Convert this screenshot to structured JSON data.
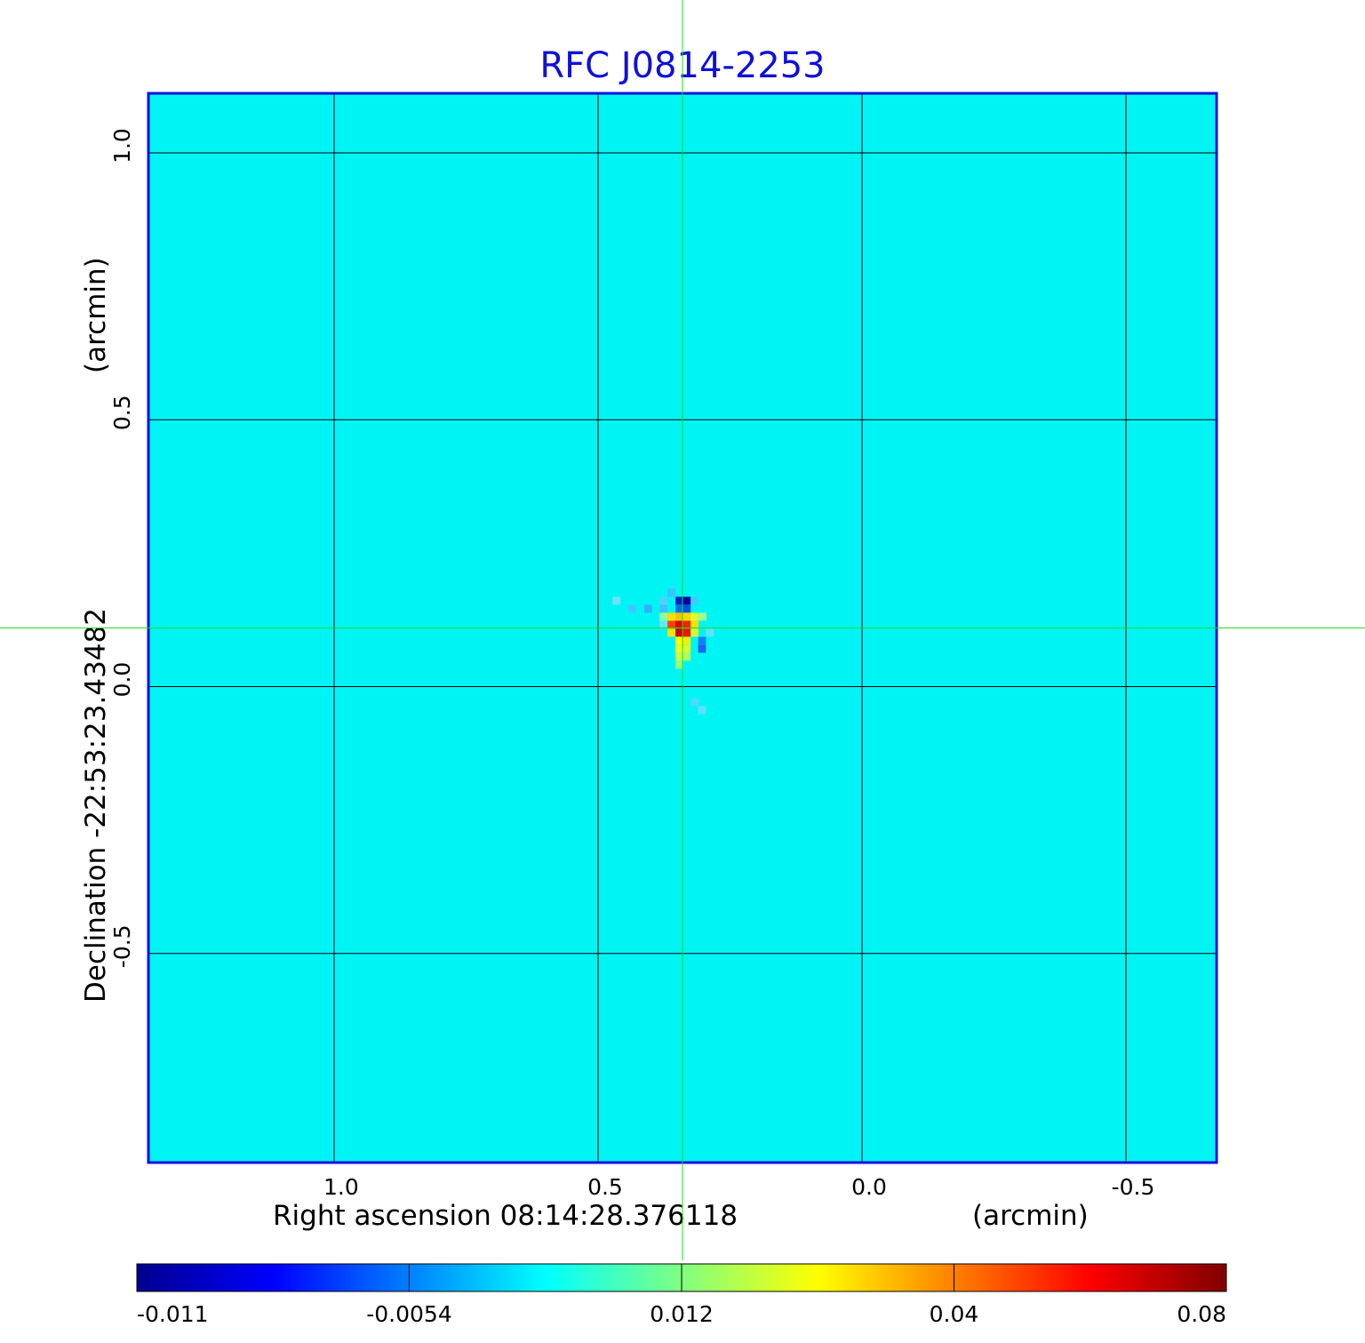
{
  "chart_data": {
    "type": "heatmap",
    "title": "RFC J0814-2253",
    "xlabel": "Right ascension  08:14:28.376118",
    "xlabel_unit": "(arcmin)",
    "ylabel": "Declination  -22:53:23.43482",
    "ylabel_unit": "(arcmin)",
    "x_ticks": [
      1.0,
      0.5,
      0.0,
      -0.5
    ],
    "x_tick_labels": [
      "1.0",
      "0.5",
      "0.0",
      "-0.5"
    ],
    "y_ticks": [
      1.0,
      0.5,
      0.0,
      -0.5
    ],
    "y_tick_labels": [
      "1.0",
      "0.5",
      "0.0",
      "-0.5"
    ],
    "xlim": [
      1.35,
      -0.67
    ],
    "ylim": [
      -0.89,
      1.11
    ],
    "grid": true,
    "crosshair": {
      "x": 0.34,
      "y": 0.11,
      "color": "#22dd22"
    },
    "colormap": "jet",
    "colorbar": {
      "orientation": "horizontal",
      "tick_labels": [
        "-0.011",
        "-0.0054",
        "0.012",
        "0.04",
        "0.08"
      ],
      "stops": [
        "#00008f",
        "#0000ff",
        "#0080ff",
        "#00ffff",
        "#80ff80",
        "#ffff00",
        "#ff8000",
        "#ff0000",
        "#800000"
      ]
    },
    "background_color": "#00f4f4",
    "source_pixels": [
      {
        "x": 0.346,
        "y": 0.161,
        "color": "#0020c8"
      },
      {
        "x": 0.332,
        "y": 0.161,
        "color": "#0000a8"
      },
      {
        "x": 0.346,
        "y": 0.146,
        "color": "#0070e8"
      },
      {
        "x": 0.332,
        "y": 0.146,
        "color": "#0050e0"
      },
      {
        "x": 0.361,
        "y": 0.131,
        "color": "#f8e000"
      },
      {
        "x": 0.346,
        "y": 0.131,
        "color": "#ffc000"
      },
      {
        "x": 0.332,
        "y": 0.131,
        "color": "#ffd800"
      },
      {
        "x": 0.317,
        "y": 0.131,
        "color": "#e0ff20"
      },
      {
        "x": 0.361,
        "y": 0.116,
        "color": "#ff4000"
      },
      {
        "x": 0.346,
        "y": 0.116,
        "color": "#e00000"
      },
      {
        "x": 0.332,
        "y": 0.116,
        "color": "#ff2000"
      },
      {
        "x": 0.317,
        "y": 0.116,
        "color": "#ffe000"
      },
      {
        "x": 0.361,
        "y": 0.101,
        "color": "#ffe000"
      },
      {
        "x": 0.346,
        "y": 0.101,
        "color": "#c80000"
      },
      {
        "x": 0.332,
        "y": 0.101,
        "color": "#ff1000"
      },
      {
        "x": 0.317,
        "y": 0.101,
        "color": "#d0ff30"
      },
      {
        "x": 0.346,
        "y": 0.086,
        "color": "#ffff00"
      },
      {
        "x": 0.332,
        "y": 0.086,
        "color": "#f0f000"
      },
      {
        "x": 0.303,
        "y": 0.086,
        "color": "#1080ff"
      },
      {
        "x": 0.303,
        "y": 0.071,
        "color": "#2060f0"
      },
      {
        "x": 0.346,
        "y": 0.071,
        "color": "#e8ff20"
      },
      {
        "x": 0.332,
        "y": 0.071,
        "color": "#d8ff30"
      },
      {
        "x": 0.346,
        "y": 0.056,
        "color": "#c8ff40"
      },
      {
        "x": 0.332,
        "y": 0.056,
        "color": "#b0ff60"
      },
      {
        "x": 0.346,
        "y": 0.041,
        "color": "#90ff80"
      },
      {
        "x": 0.376,
        "y": 0.131,
        "color": "#90ffa0"
      },
      {
        "x": 0.302,
        "y": 0.131,
        "color": "#a0ff90"
      },
      {
        "x": 0.376,
        "y": 0.146,
        "color": "#40c0ff"
      },
      {
        "x": 0.405,
        "y": 0.146,
        "color": "#30b0ff"
      },
      {
        "x": 0.435,
        "y": 0.146,
        "color": "#40c8ff"
      },
      {
        "x": 0.465,
        "y": 0.161,
        "color": "#70e0ff"
      },
      {
        "x": 0.361,
        "y": 0.176,
        "color": "#40c0ff"
      },
      {
        "x": 0.376,
        "y": 0.161,
        "color": "#50d0ff"
      },
      {
        "x": 0.317,
        "y": 0.161,
        "color": "#40c8ff"
      },
      {
        "x": 0.288,
        "y": 0.101,
        "color": "#60e0ff"
      },
      {
        "x": 0.317,
        "y": -0.029,
        "color": "#50d8ff"
      },
      {
        "x": 0.303,
        "y": -0.044,
        "color": "#60e0ff"
      },
      {
        "x": 0.376,
        "y": 0.116,
        "color": "#60e8ff"
      }
    ]
  }
}
